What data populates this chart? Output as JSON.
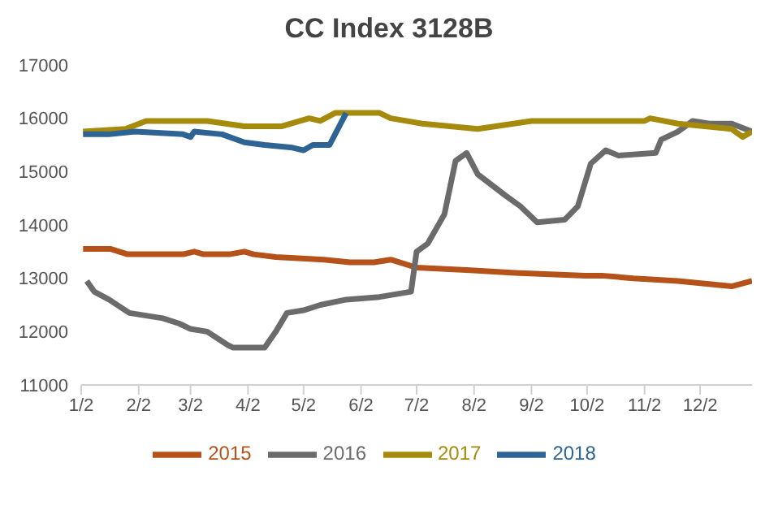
{
  "chart_data": {
    "type": "line",
    "title": "CC Index 3128B",
    "xlim": [
      "--01-02",
      "--12-30"
    ],
    "xticks": [
      {
        "value": "--01-02",
        "label": "1/2"
      },
      {
        "value": "--02-02",
        "label": "2/2"
      },
      {
        "value": "--03-02",
        "label": "3/2"
      },
      {
        "value": "--04-02",
        "label": "4/2"
      },
      {
        "value": "--05-02",
        "label": "5/2"
      },
      {
        "value": "--06-02",
        "label": "6/2"
      },
      {
        "value": "--07-02",
        "label": "7/2"
      },
      {
        "value": "--08-02",
        "label": "8/2"
      },
      {
        "value": "--09-02",
        "label": "9/2"
      },
      {
        "value": "--10-02",
        "label": "10/2"
      },
      {
        "value": "--11-02",
        "label": "11/2"
      },
      {
        "value": "--12-02",
        "label": "12/2"
      }
    ],
    "ylim": [
      11000,
      17000
    ],
    "yticks": [
      11000,
      12000,
      13000,
      14000,
      15000,
      16000,
      17000
    ],
    "legend": "bottom",
    "line_style": "solid",
    "series": [
      {
        "name": "2015",
        "color": "#b5521a",
        "x": [
          "--01-03",
          "--01-18",
          "--01-27",
          "--02-26",
          "--03-04",
          "--03-09",
          "--03-23",
          "--03-31",
          "--04-05",
          "--04-17",
          "--05-13",
          "--05-27",
          "--06-09",
          "--06-18",
          "--07-02",
          "--07-31",
          "--08-24",
          "--10-01",
          "--10-10",
          "--10-27",
          "--11-20",
          "--12-19",
          "--12-30"
        ],
        "values": [
          13550,
          13550,
          13450,
          13450,
          13500,
          13450,
          13450,
          13500,
          13450,
          13400,
          13350,
          13300,
          13300,
          13350,
          13200,
          13150,
          13100,
          13050,
          13050,
          13000,
          12950,
          12850,
          12950
        ]
      },
      {
        "name": "2016",
        "color": "#6b6b6b",
        "x": [
          "--01-05",
          "--01-09",
          "--01-17",
          "--01-28",
          "--02-15",
          "--02-24",
          "--03-02",
          "--03-11",
          "--03-22",
          "--03-25",
          "--04-11",
          "--04-17",
          "--04-23",
          "--05-02",
          "--05-11",
          "--05-25",
          "--06-12",
          "--06-29",
          "--07-02",
          "--07-08",
          "--07-17",
          "--07-23",
          "--07-29",
          "--08-04",
          "--08-19",
          "--08-27",
          "--09-05",
          "--09-20",
          "--09-27",
          "--10-04",
          "--10-12",
          "--10-19",
          "--11-08",
          "--11-11",
          "--11-20",
          "--11-28",
          "--12-07",
          "--12-19",
          "--12-30"
        ],
        "values": [
          12950,
          12750,
          12600,
          12350,
          12250,
          12150,
          12050,
          12000,
          11750,
          11700,
          11700,
          12000,
          12350,
          12400,
          12500,
          12600,
          12650,
          12750,
          13500,
          13650,
          14200,
          15200,
          15350,
          14950,
          14550,
          14350,
          14050,
          14100,
          14350,
          15150,
          15400,
          15300,
          15350,
          15600,
          15750,
          15950,
          15900,
          15900,
          15750
        ]
      },
      {
        "name": "2017",
        "color": "#a68a0c",
        "x": [
          "--01-03",
          "--01-26",
          "--02-06",
          "--03-02",
          "--03-11",
          "--03-31",
          "--04-20",
          "--05-05",
          "--05-11",
          "--05-19",
          "--06-12",
          "--06-18",
          "--07-05",
          "--08-04",
          "--09-02",
          "--09-16",
          "--11-02",
          "--11-05",
          "--11-20",
          "--12-19",
          "--12-25",
          "--12-30"
        ],
        "values": [
          15750,
          15800,
          15950,
          15950,
          15950,
          15850,
          15850,
          16000,
          15950,
          16100,
          16100,
          16000,
          15900,
          15800,
          15950,
          15950,
          15950,
          16000,
          15900,
          15800,
          15650,
          15750
        ]
      },
      {
        "name": "2018",
        "color": "#2e6494",
        "x": [
          "--01-03",
          "--01-17",
          "--01-31",
          "--02-26",
          "--03-02",
          "--03-04",
          "--03-19",
          "--03-31",
          "--04-11",
          "--04-26",
          "--05-02",
          "--05-07",
          "--05-16",
          "--05-19",
          "--05-25"
        ],
        "values": [
          15700,
          15700,
          15750,
          15700,
          15650,
          15750,
          15700,
          15550,
          15500,
          15450,
          15400,
          15500,
          15500,
          15700,
          16100
        ]
      }
    ]
  }
}
